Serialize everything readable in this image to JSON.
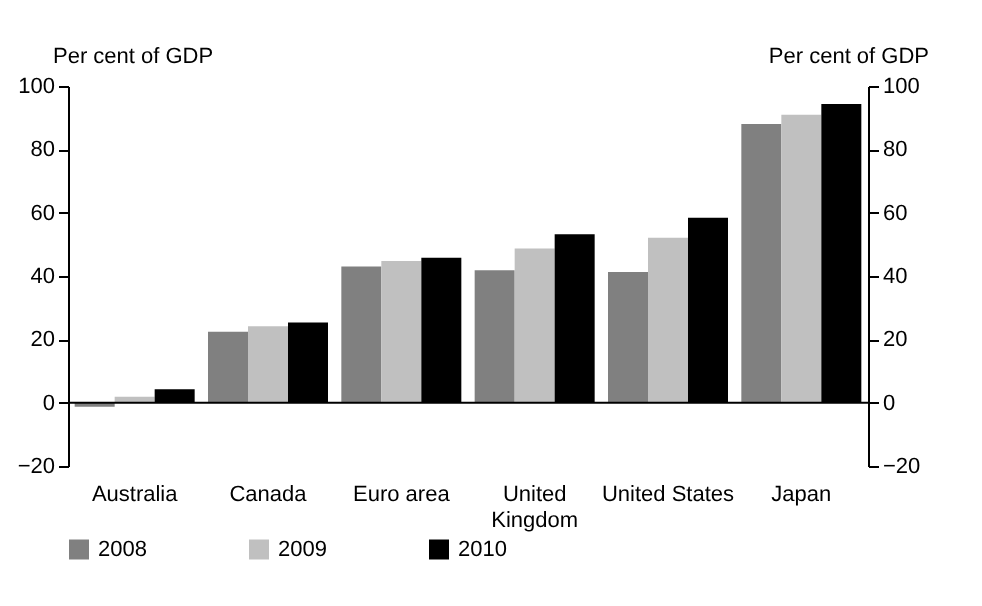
{
  "chart_data": {
    "type": "bar",
    "categories": [
      "Australia",
      "Canada",
      "Euro area",
      "United Kingdom",
      "United States",
      "Japan"
    ],
    "series": [
      {
        "name": "2008",
        "color": "#808080",
        "values": [
          -1.3,
          22.4,
          43,
          41.8,
          41.3,
          88
        ]
      },
      {
        "name": "2009",
        "color": "#c0c0c0",
        "values": [
          1.9,
          24.1,
          44.7,
          48.7,
          52.1,
          90.9
        ]
      },
      {
        "name": "2010",
        "color": "#000000",
        "values": [
          4.2,
          25.3,
          45.8,
          53.2,
          58.4,
          94.3
        ]
      }
    ],
    "ylabel": "Per cent of GDP",
    "y2label": "Per cent of GDP",
    "ylim": [
      -20,
      100
    ],
    "yticks": [
      -20,
      0,
      20,
      40,
      60,
      80,
      100
    ],
    "y2lim": [
      -20,
      100
    ],
    "y2ticks": [
      -20,
      0,
      20,
      40,
      60,
      80,
      100
    ],
    "ref_lines": [
      {
        "axis": "y",
        "value": 0,
        "color": "#000000"
      }
    ],
    "grid": false,
    "legend": "bottom"
  }
}
